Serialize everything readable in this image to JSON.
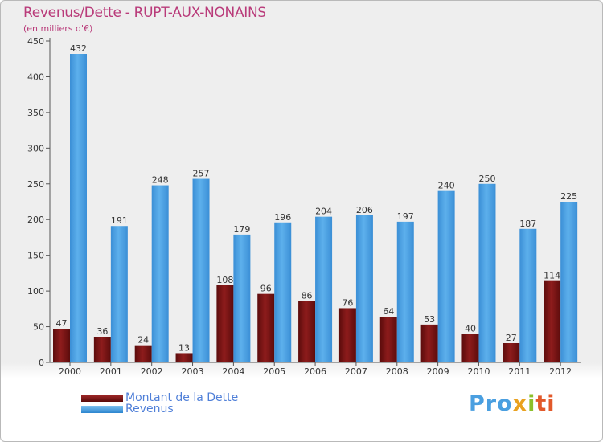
{
  "title": "Revenus/Dette - RUPT-AUX-NONAINS",
  "subtitle": "(en milliers d'€)",
  "brand": {
    "logo_text": "Proxiti",
    "parts": [
      "Pro",
      "x",
      "i",
      "ti"
    ]
  },
  "colors": {
    "title": "#b93b7a",
    "debt_bar": "#7b1414",
    "revenue_bar": "#4aa0e2",
    "legend_text": "#4f7fd8",
    "axis": "#555555"
  },
  "chart_data": {
    "type": "bar",
    "title": "Revenus/Dette - RUPT-AUX-NONAINS",
    "ylabel": "(en milliers d'€)",
    "xlabel": "",
    "categories": [
      "2000",
      "2001",
      "2002",
      "2003",
      "2004",
      "2005",
      "2006",
      "2007",
      "2008",
      "2009",
      "2010",
      "2011",
      "2012"
    ],
    "series": [
      {
        "name": "Montant de la Dette",
        "color": "#7b1414",
        "values": [
          47,
          36,
          24,
          13,
          108,
          96,
          86,
          76,
          64,
          53,
          40,
          27,
          114
        ]
      },
      {
        "name": "Revenus",
        "color": "#4aa0e2",
        "values": [
          432,
          191,
          248,
          257,
          179,
          196,
          204,
          206,
          197,
          240,
          250,
          187,
          225
        ]
      }
    ],
    "ylim": [
      0,
      450
    ],
    "yticks": [
      0,
      50,
      100,
      150,
      200,
      250,
      300,
      350,
      400,
      450
    ],
    "grid": false,
    "legend": "bottom-left"
  }
}
